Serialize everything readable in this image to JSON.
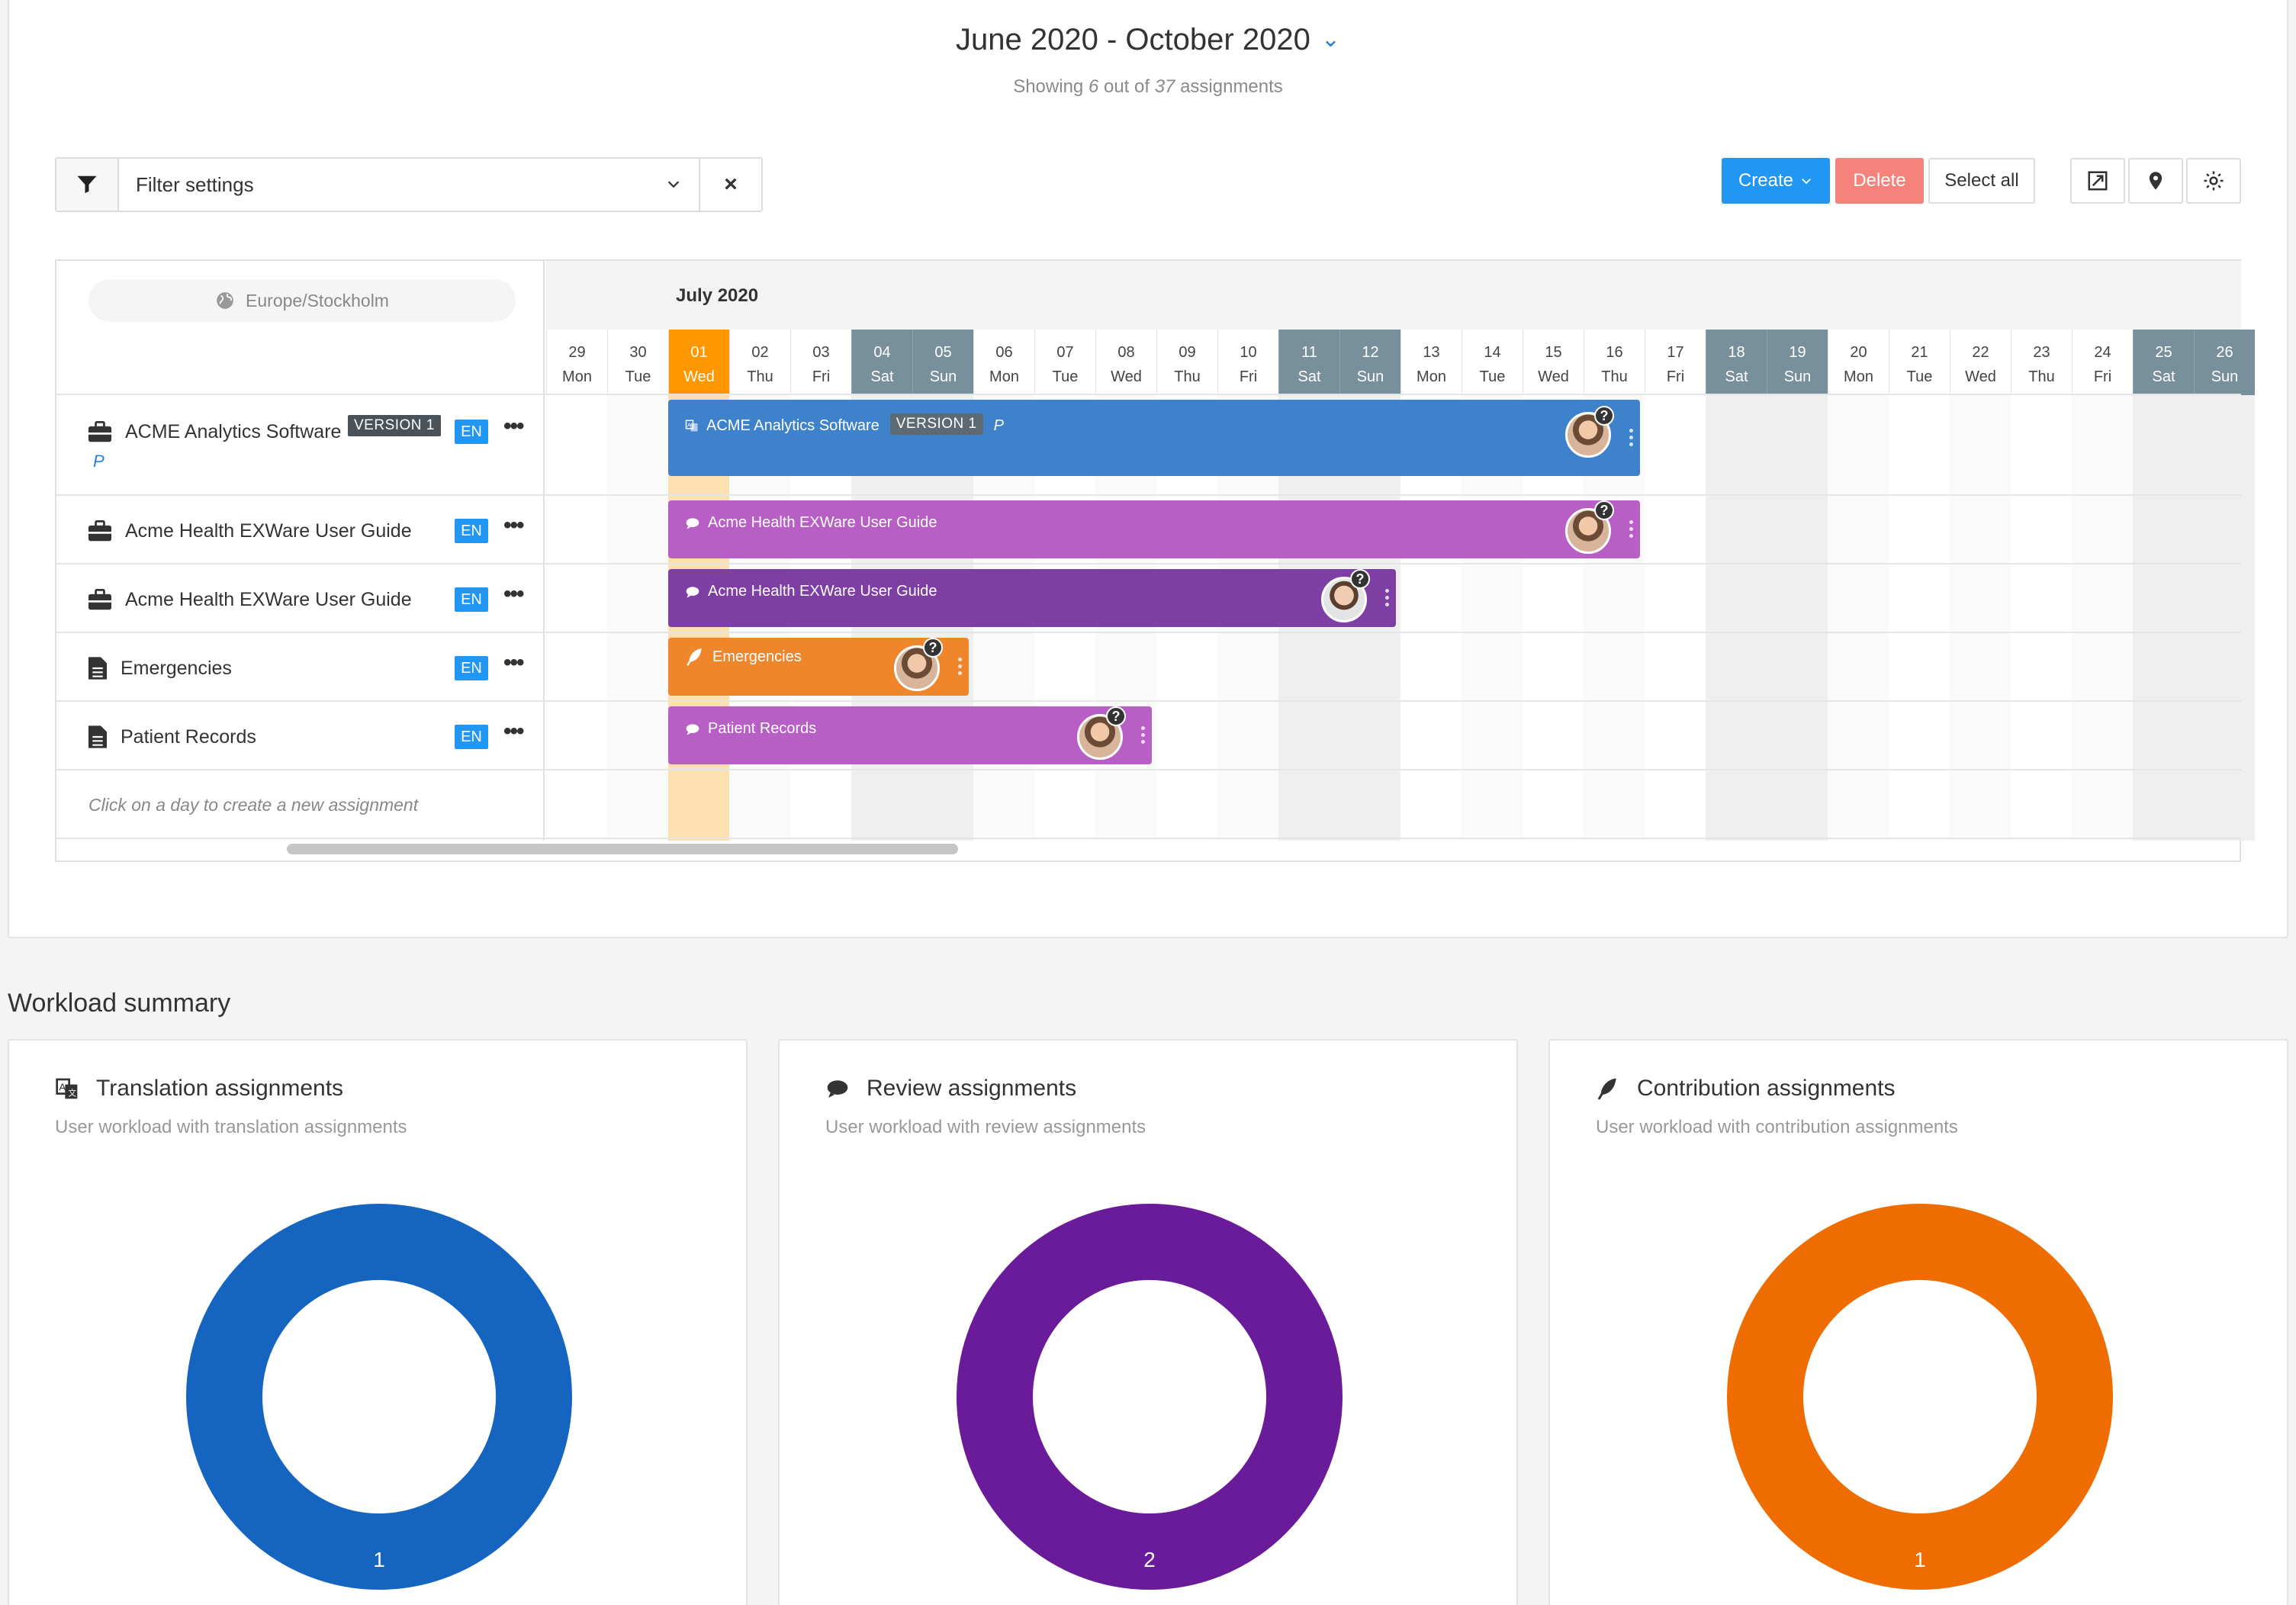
{
  "header": {
    "date_range": "June 2020 - October 2020",
    "showing_prefix": "Showing",
    "showing_count": "6",
    "showing_mid": "out of",
    "showing_total": "37",
    "showing_suffix": "assignments"
  },
  "filter": {
    "placeholder": "Filter settings",
    "clear": "×"
  },
  "toolbar": {
    "create": "Create",
    "delete": "Delete",
    "select_all": "Select all"
  },
  "timezone": "Europe/Stockholm",
  "month_label": "July 2020",
  "days": [
    {
      "d": "29",
      "w": "Mon"
    },
    {
      "d": "30",
      "w": "Tue"
    },
    {
      "d": "01",
      "w": "Wed"
    },
    {
      "d": "02",
      "w": "Thu"
    },
    {
      "d": "03",
      "w": "Fri"
    },
    {
      "d": "04",
      "w": "Sat"
    },
    {
      "d": "05",
      "w": "Sun"
    },
    {
      "d": "06",
      "w": "Mon"
    },
    {
      "d": "07",
      "w": "Tue"
    },
    {
      "d": "08",
      "w": "Wed"
    },
    {
      "d": "09",
      "w": "Thu"
    },
    {
      "d": "10",
      "w": "Fri"
    },
    {
      "d": "11",
      "w": "Sat"
    },
    {
      "d": "12",
      "w": "Sun"
    },
    {
      "d": "13",
      "w": "Mon"
    },
    {
      "d": "14",
      "w": "Tue"
    },
    {
      "d": "15",
      "w": "Wed"
    },
    {
      "d": "16",
      "w": "Thu"
    },
    {
      "d": "17",
      "w": "Fri"
    },
    {
      "d": "18",
      "w": "Sat"
    },
    {
      "d": "19",
      "w": "Sun"
    },
    {
      "d": "20",
      "w": "Mon"
    },
    {
      "d": "21",
      "w": "Tue"
    },
    {
      "d": "22",
      "w": "Wed"
    },
    {
      "d": "23",
      "w": "Thu"
    },
    {
      "d": "24",
      "w": "Fri"
    },
    {
      "d": "25",
      "w": "Sat"
    },
    {
      "d": "26",
      "w": "Sun"
    }
  ],
  "rows": [
    {
      "title": "ACME Analytics Software",
      "version": "VERSION 1",
      "lang": "EN",
      "sub": "P",
      "bar_label": "ACME Analytics Software"
    },
    {
      "title": "Acme Health EXWare User Guide",
      "lang": "EN",
      "bar_label": "Acme Health EXWare User Guide"
    },
    {
      "title": "Acme Health EXWare User Guide",
      "lang": "EN",
      "bar_label": "Acme Health EXWare User Guide"
    },
    {
      "title": "Emergencies",
      "lang": "EN",
      "bar_label": "Emergencies"
    },
    {
      "title": "Patient Records",
      "lang": "EN",
      "bar_label": "Patient Records"
    }
  ],
  "hint": "Click on a day to create a new assignment",
  "workload": {
    "title": "Workload summary",
    "cards": [
      {
        "title": "Translation assignments",
        "subtitle": "User workload with translation assignments",
        "value": "1",
        "color": "#1565c0"
      },
      {
        "title": "Review assignments",
        "subtitle": "User workload with review assignments",
        "value": "2",
        "color": "#6a1b9a"
      },
      {
        "title": "Contribution assignments",
        "subtitle": "User workload with contribution assignments",
        "value": "1",
        "color": "#ef6c00"
      }
    ]
  },
  "colors": {
    "translation": "#3f82cc",
    "review_light": "#b85fc6",
    "review_dark": "#7e3fa4",
    "contribution": "#f0862c",
    "today": "#ff9800",
    "weekend": "#78909c"
  }
}
